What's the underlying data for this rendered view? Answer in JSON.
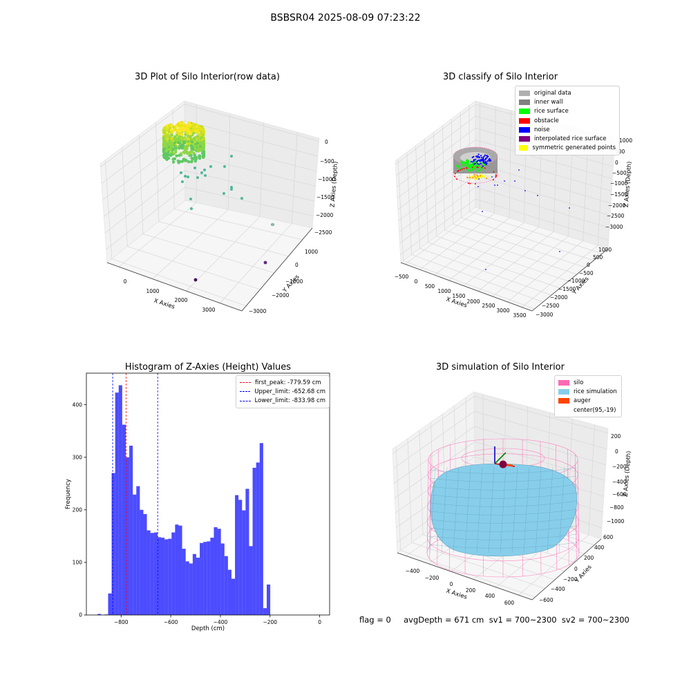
{
  "figure": {
    "title": "BSBSR04 2025-08-09 07:23:22",
    "status_line": "flag = 0     avgDepth = 671 cm  sv1 = 700~2300  sv2 = 700~2300"
  },
  "panels": {
    "raw": {
      "title": "3D Plot of Silo Interior(row data)",
      "xlabel": "X Axies",
      "ylabel": "Y Axies",
      "zlabel": "Z Axies (Depth)",
      "xticks": [
        "0",
        "1000",
        "2000",
        "3000"
      ],
      "yticks": [
        "1000",
        "0",
        "−1000",
        "−2000",
        "−3000"
      ],
      "zticks": [
        "0",
        "−500",
        "−1000",
        "−1500",
        "−2000",
        "−2500"
      ]
    },
    "classify": {
      "title": "3D classify of Silo Interior",
      "xlabel": "X Axies",
      "ylabel": "Y Axies",
      "zlabel": "Z Axies (Depth)",
      "xticks": [
        "−500",
        "0",
        "500",
        "1000",
        "1500",
        "2000",
        "2500",
        "3000",
        "3500"
      ],
      "yticks": [
        "1000",
        "500",
        "0",
        "−500",
        "−1000",
        "−1500",
        "−2000",
        "−2500",
        "−3000"
      ],
      "zticks": [
        "1000",
        "500",
        "0",
        "−500",
        "−1000",
        "−1500",
        "−2000",
        "−2500",
        "−3000"
      ],
      "legend": [
        {
          "label": "original data",
          "color": "#b0b0b0"
        },
        {
          "label": "inner wall",
          "color": "#808080"
        },
        {
          "label": "rice surface",
          "color": "#00ff00"
        },
        {
          "label": "obstacle",
          "color": "#ff0000"
        },
        {
          "label": "noise",
          "color": "#0000ff"
        },
        {
          "label": "interpolated rice surface",
          "color": "#800080"
        },
        {
          "label": "symmetric generated points",
          "color": "#ffff00"
        }
      ]
    },
    "histogram": {
      "title": "Histogram of Z-Axies (Height) Values",
      "xlabel": "Depth (cm)",
      "ylabel": "Frequency",
      "legend": [
        {
          "label": "first_peak: -779.59 cm",
          "color": "#ff0000"
        },
        {
          "label": "Upper_limit: -652.68 cm",
          "color": "#0000ff"
        },
        {
          "label": "Lower_limit: -833.98 cm",
          "color": "#0000ff"
        }
      ]
    },
    "simulation": {
      "title": "3D simulation of Silo Interior",
      "xlabel": "X Axies",
      "ylabel": "Y Axies",
      "zlabel": "Z Axies (Depth)",
      "xticks": [
        "−400",
        "−200",
        "0",
        "200",
        "400",
        "600"
      ],
      "yticks": [
        "600",
        "400",
        "200",
        "0",
        "−200",
        "−400",
        "−600"
      ],
      "zticks": [
        "200",
        "0",
        "−200",
        "−400",
        "−600",
        "−800",
        "−1000"
      ],
      "legend": [
        {
          "label": "silo",
          "color": "#ff69b4"
        },
        {
          "label": "rice simulation",
          "color": "#87ceeb"
        },
        {
          "label": "auger",
          "color": "#ff4500"
        },
        {
          "label": "center(95,-19)",
          "color": ""
        }
      ]
    }
  },
  "chart_data": {
    "type": "bar",
    "title": "Histogram of Z-Axies (Height) Values",
    "xlabel": "Depth (cm)",
    "ylabel": "Frequency",
    "xlim": [
      -940,
      40
    ],
    "ylim": [
      0,
      460
    ],
    "xticks": [
      -800,
      -600,
      -400,
      -200,
      0
    ],
    "xtick_labels": [
      "−800",
      "−600",
      "−400",
      "−200",
      "0"
    ],
    "yticks": [
      0,
      100,
      200,
      300,
      400
    ],
    "bin_start": -895,
    "bin_width": 14.2,
    "values": [
      2,
      0,
      1,
      41,
      270,
      423,
      437,
      362,
      300,
      322,
      229,
      245,
      200,
      192,
      161,
      156,
      157,
      148,
      147,
      144,
      145,
      157,
      172,
      170,
      126,
      102,
      98,
      116,
      109,
      137,
      139,
      140,
      147,
      167,
      164,
      136,
      112,
      86,
      69,
      228,
      219,
      199,
      240,
      131,
      280,
      290,
      327,
      13,
      58
    ],
    "color": "#0000ff",
    "vlines": [
      {
        "name": "first_peak",
        "x": -779.59,
        "color": "#ff0000"
      },
      {
        "name": "Upper_limit",
        "x": -652.68,
        "color": "#0000ff"
      },
      {
        "name": "Lower_limit",
        "x": -833.98,
        "color": "#0000ff"
      }
    ],
    "legend_position": "upper right"
  }
}
